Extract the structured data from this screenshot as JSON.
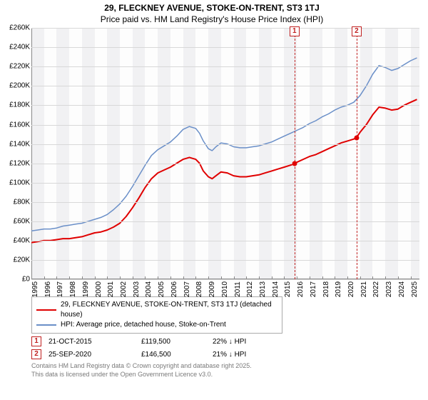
{
  "title": {
    "main": "29, FLECKNEY AVENUE, STOKE-ON-TRENT, ST3 1TJ",
    "sub": "Price paid vs. HM Land Registry's House Price Index (HPI)"
  },
  "chart": {
    "type": "line",
    "background_color": "#fdfdfd",
    "band_color": "#f1f1f3",
    "grid_color": "#d8d8d8",
    "axis_color": "#888888",
    "y": {
      "min": 0,
      "max": 260,
      "ticks": [
        0,
        20,
        40,
        60,
        80,
        100,
        120,
        140,
        160,
        180,
        200,
        220,
        240,
        260
      ],
      "tick_labels": [
        "£0",
        "£20K",
        "£40K",
        "£60K",
        "£80K",
        "£100K",
        "£120K",
        "£140K",
        "£160K",
        "£180K",
        "£200K",
        "£220K",
        "£240K",
        "£260K"
      ],
      "label_fontsize": 10
    },
    "x": {
      "min": 1995,
      "max": 2025.7,
      "ticks": [
        1995,
        1996,
        1997,
        1998,
        1999,
        2000,
        2001,
        2002,
        2003,
        2004,
        2005,
        2006,
        2007,
        2008,
        2009,
        2010,
        2011,
        2012,
        2013,
        2014,
        2015,
        2016,
        2017,
        2018,
        2019,
        2020,
        2021,
        2022,
        2023,
        2024,
        2025
      ],
      "tick_labels": [
        "1995",
        "1996",
        "1997",
        "1998",
        "1999",
        "2000",
        "2001",
        "2002",
        "2003",
        "2004",
        "2005",
        "2006",
        "2007",
        "2008",
        "2009",
        "2010",
        "2011",
        "2012",
        "2013",
        "2014",
        "2015",
        "2016",
        "2017",
        "2018",
        "2019",
        "2020",
        "2021",
        "2022",
        "2023",
        "2024",
        "2025"
      ],
      "label_fontsize": 10,
      "band_years": [
        1995,
        1997,
        1999,
        2001,
        2003,
        2005,
        2007,
        2009,
        2011,
        2013,
        2015,
        2017,
        2019,
        2021,
        2023,
        2025
      ]
    },
    "series": [
      {
        "name": "address",
        "label": "29, FLECKNEY AVENUE, STOKE-ON-TRENT, ST3 1TJ (detached house)",
        "color": "#e00000",
        "stroke_width": 2,
        "points": [
          [
            1995,
            38
          ],
          [
            1995.5,
            39
          ],
          [
            1996,
            40
          ],
          [
            1996.5,
            40
          ],
          [
            1997,
            41
          ],
          [
            1997.5,
            42
          ],
          [
            1998,
            42
          ],
          [
            1998.5,
            43
          ],
          [
            1999,
            44
          ],
          [
            1999.5,
            46
          ],
          [
            2000,
            48
          ],
          [
            2000.5,
            49
          ],
          [
            2001,
            51
          ],
          [
            2001.5,
            54
          ],
          [
            2002,
            58
          ],
          [
            2002.5,
            65
          ],
          [
            2003,
            74
          ],
          [
            2003.5,
            84
          ],
          [
            2004,
            95
          ],
          [
            2004.5,
            104
          ],
          [
            2005,
            110
          ],
          [
            2005.5,
            113
          ],
          [
            2006,
            116
          ],
          [
            2006.5,
            120
          ],
          [
            2007,
            124
          ],
          [
            2007.5,
            126
          ],
          [
            2008,
            124
          ],
          [
            2008.3,
            120
          ],
          [
            2008.6,
            112
          ],
          [
            2009,
            106
          ],
          [
            2009.3,
            104
          ],
          [
            2009.6,
            107
          ],
          [
            2010,
            111
          ],
          [
            2010.5,
            110
          ],
          [
            2011,
            107
          ],
          [
            2011.5,
            106
          ],
          [
            2012,
            106
          ],
          [
            2012.5,
            107
          ],
          [
            2013,
            108
          ],
          [
            2013.5,
            110
          ],
          [
            2014,
            112
          ],
          [
            2014.5,
            114
          ],
          [
            2015,
            116
          ],
          [
            2015.5,
            118
          ],
          [
            2015.81,
            119.5
          ],
          [
            2016,
            121
          ],
          [
            2016.5,
            124
          ],
          [
            2017,
            127
          ],
          [
            2017.5,
            129
          ],
          [
            2018,
            132
          ],
          [
            2018.5,
            135
          ],
          [
            2019,
            138
          ],
          [
            2019.5,
            141
          ],
          [
            2020,
            143
          ],
          [
            2020.5,
            145
          ],
          [
            2020.73,
            146.5
          ],
          [
            2021,
            152
          ],
          [
            2021.5,
            160
          ],
          [
            2022,
            170
          ],
          [
            2022.5,
            178
          ],
          [
            2023,
            177
          ],
          [
            2023.5,
            175
          ],
          [
            2024,
            176
          ],
          [
            2024.5,
            180
          ],
          [
            2025,
            183
          ],
          [
            2025.5,
            186
          ]
        ]
      },
      {
        "name": "hpi",
        "label": "HPI: Average price, detached house, Stoke-on-Trent",
        "color": "#6a8fc8",
        "stroke_width": 1.5,
        "points": [
          [
            1995,
            50
          ],
          [
            1995.5,
            51
          ],
          [
            1996,
            52
          ],
          [
            1996.5,
            52
          ],
          [
            1997,
            53
          ],
          [
            1997.5,
            55
          ],
          [
            1998,
            56
          ],
          [
            1998.5,
            57
          ],
          [
            1999,
            58
          ],
          [
            1999.5,
            60
          ],
          [
            2000,
            62
          ],
          [
            2000.5,
            64
          ],
          [
            2001,
            67
          ],
          [
            2001.5,
            72
          ],
          [
            2002,
            78
          ],
          [
            2002.5,
            86
          ],
          [
            2003,
            96
          ],
          [
            2003.5,
            107
          ],
          [
            2004,
            118
          ],
          [
            2004.5,
            128
          ],
          [
            2005,
            134
          ],
          [
            2005.5,
            138
          ],
          [
            2006,
            142
          ],
          [
            2006.5,
            148
          ],
          [
            2007,
            155
          ],
          [
            2007.5,
            158
          ],
          [
            2008,
            156
          ],
          [
            2008.3,
            151
          ],
          [
            2008.6,
            143
          ],
          [
            2009,
            135
          ],
          [
            2009.3,
            133
          ],
          [
            2009.6,
            137
          ],
          [
            2010,
            141
          ],
          [
            2010.5,
            140
          ],
          [
            2011,
            137
          ],
          [
            2011.5,
            136
          ],
          [
            2012,
            136
          ],
          [
            2012.5,
            137
          ],
          [
            2013,
            138
          ],
          [
            2013.5,
            140
          ],
          [
            2014,
            142
          ],
          [
            2014.5,
            145
          ],
          [
            2015,
            148
          ],
          [
            2015.5,
            151
          ],
          [
            2016,
            154
          ],
          [
            2016.5,
            157
          ],
          [
            2017,
            161
          ],
          [
            2017.5,
            164
          ],
          [
            2018,
            168
          ],
          [
            2018.5,
            171
          ],
          [
            2019,
            175
          ],
          [
            2019.5,
            178
          ],
          [
            2020,
            180
          ],
          [
            2020.5,
            183
          ],
          [
            2021,
            190
          ],
          [
            2021.5,
            200
          ],
          [
            2022,
            212
          ],
          [
            2022.5,
            221
          ],
          [
            2023,
            219
          ],
          [
            2023.5,
            216
          ],
          [
            2024,
            218
          ],
          [
            2024.5,
            222
          ],
          [
            2025,
            226
          ],
          [
            2025.5,
            229
          ]
        ]
      }
    ],
    "markers": [
      {
        "id": "1",
        "x": 2015.81,
        "y": 119.5,
        "line_color": "#c02020",
        "box_border": "#c02020",
        "box_text_color": "#c02020",
        "dot_color": "#e00000"
      },
      {
        "id": "2",
        "x": 2020.73,
        "y": 146.5,
        "line_color": "#c02020",
        "box_border": "#c02020",
        "box_text_color": "#c02020",
        "dot_color": "#e00000"
      }
    ]
  },
  "legend": {
    "border_color": "#aaaaaa",
    "rows": [
      {
        "color": "#e00000",
        "stroke_width": 2,
        "label": "29, FLECKNEY AVENUE, STOKE-ON-TRENT, ST3 1TJ (detached house)"
      },
      {
        "color": "#6a8fc8",
        "stroke_width": 1.5,
        "label": "HPI: Average price, detached house, Stoke-on-Trent"
      }
    ]
  },
  "events": [
    {
      "marker_id": "1",
      "box_border": "#c02020",
      "box_text_color": "#c02020",
      "date": "21-OCT-2015",
      "price": "£119,500",
      "delta": "22% ↓ HPI"
    },
    {
      "marker_id": "2",
      "box_border": "#c02020",
      "box_text_color": "#c02020",
      "date": "25-SEP-2020",
      "price": "£146,500",
      "delta": "21% ↓ HPI"
    }
  ],
  "footnote": {
    "line1": "Contains HM Land Registry data © Crown copyright and database right 2025.",
    "line2": "This data is licensed under the Open Government Licence v3.0.",
    "color": "#7a7a7a"
  }
}
